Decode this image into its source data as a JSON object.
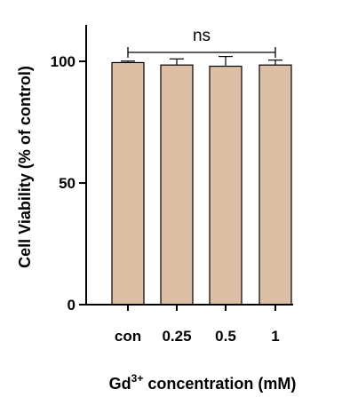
{
  "chart_data": {
    "type": "bar",
    "categories": [
      "con",
      "0.25",
      "0.5",
      "1"
    ],
    "values": [
      99.5,
      98.5,
      98.0,
      98.5
    ],
    "errors": [
      0.6,
      2.5,
      4.0,
      2.0
    ],
    "ylim": [
      0,
      115
    ],
    "yticks": [
      "0",
      "50",
      "100"
    ],
    "ylabel": "Cell Viability (% of control)",
    "xlabel_main": "Gd",
    "xlabel_sup": "3+",
    "xlabel_rest": " concentration (mM)",
    "annotation": "ns",
    "bar_color": "#dcbfa5",
    "grid": false,
    "legend": "none"
  }
}
